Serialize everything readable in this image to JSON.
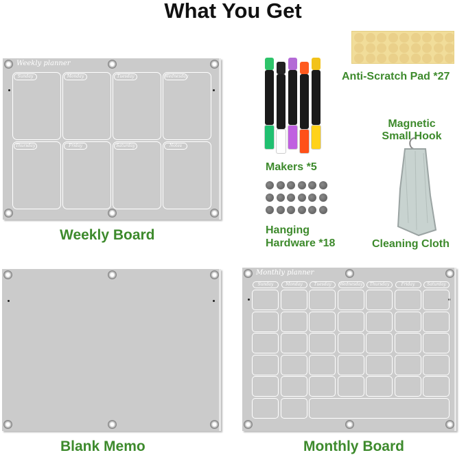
{
  "heading": "What You Get",
  "weekly_board": {
    "label": "Weekly Board",
    "header": "Weekly planner",
    "days": [
      "Sunday",
      "Monday",
      "Tuesday",
      "Wednesday",
      "Thursday",
      "Friday",
      "Saturday",
      "Notes"
    ]
  },
  "markers": {
    "label": "Makers *5",
    "cap_colors": [
      "#2ec46a",
      "#222222",
      "#b46ad6",
      "#ff5a1e",
      "#f2c21a"
    ],
    "grip_colors": [
      "#20c070",
      "#ffffff",
      "#c060e0",
      "#ff5018",
      "#ffd21a"
    ]
  },
  "hardware": {
    "label": "Hanging Hardware *18"
  },
  "pad": {
    "label": "Anti-Scratch Pad *27"
  },
  "hook": {
    "label": "Magnetic Small Hook"
  },
  "cloth": {
    "label": "Cleaning Cloth"
  },
  "blank_board": {
    "label": "Blank Memo"
  },
  "monthly_board": {
    "label": "Monthly Board",
    "header": "Monthly planner",
    "days": [
      "Sunday",
      "Monday",
      "Tuesday",
      "Wednesday",
      "Thursday",
      "Friday",
      "Saturday"
    ]
  },
  "accent_color": "#3d8a2c"
}
